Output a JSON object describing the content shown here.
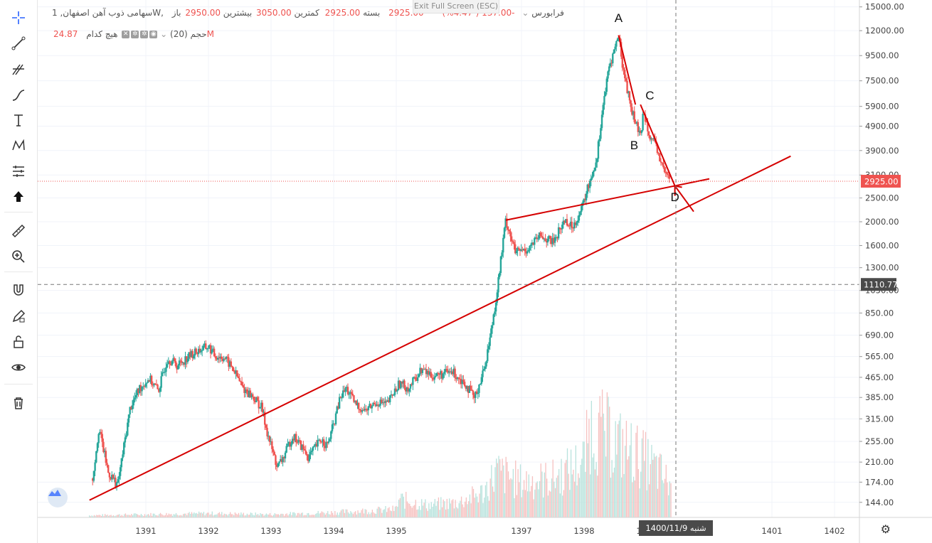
{
  "toolbar": {
    "items": [
      "crosshair-icon",
      "trendline-icon",
      "pitchfork-icon",
      "brush-icon",
      "text-icon",
      "pattern-icon",
      "forecast-icon",
      "arrow-up-icon",
      "ruler-icon",
      "zoom-in-icon",
      "magnet-icon",
      "lock-pencil-icon",
      "unlock-icon",
      "eye-icon",
      "trash-icon"
    ]
  },
  "header": {
    "symbol": "سهامی ذوب آهن اصفهان, 1W, فرابورس",
    "open_label": "باز",
    "open_value": "2950.00",
    "high_label": "بیشترین",
    "high_value": "3050.00",
    "low_label": "کمترین",
    "low_value": "2925.00",
    "close_label": "بسته",
    "close_value": "2925.00",
    "change": "-137.00 (-4.47%)",
    "volume_title": "حجم (20)",
    "volume_none": "هیچ کدام",
    "volume_value": "24.87M",
    "exit_fullscreen": "Exit Full Screen (ESC)"
  },
  "colors": {
    "up": "#26a69a",
    "down": "#ef5350",
    "line": "#d50000",
    "price_tag": "#ef5350",
    "crosshair_tag": "#4a4a4a"
  },
  "chart_data": {
    "type": "candlestick",
    "y_scale": "log",
    "ylim": [
      125,
      16000
    ],
    "y_ticks": [
      "15000.00",
      "12000.00",
      "9500.00",
      "7500.00",
      "5900.00",
      "4900.00",
      "3900.00",
      "3100.00",
      "2500.00",
      "2000.00",
      "1600.00",
      "1300.00",
      "1050.00",
      "850.00",
      "690.00",
      "565.00",
      "465.00",
      "385.00",
      "315.00",
      "255.00",
      "210.00",
      "174.00",
      "144.00"
    ],
    "x_ticks": [
      "1391",
      "1392",
      "1393",
      "1394",
      "1395",
      "1397",
      "1398",
      "1399",
      "1401",
      "1402"
    ],
    "last_price": "2925.00",
    "crosshair_price": "1110.77",
    "crosshair_date": "شنبه  1400/11/9",
    "price_path": [
      [
        1390.15,
        180
      ],
      [
        1390.25,
        290
      ],
      [
        1390.4,
        190
      ],
      [
        1390.55,
        170
      ],
      [
        1390.75,
        350
      ],
      [
        1390.9,
        420
      ],
      [
        1391.05,
        460
      ],
      [
        1391.2,
        410
      ],
      [
        1391.35,
        560
      ],
      [
        1391.5,
        520
      ],
      [
        1391.7,
        570
      ],
      [
        1391.85,
        600
      ],
      [
        1392.0,
        620
      ],
      [
        1392.1,
        570
      ],
      [
        1392.25,
        560
      ],
      [
        1392.4,
        500
      ],
      [
        1392.55,
        420
      ],
      [
        1392.7,
        390
      ],
      [
        1392.85,
        350
      ],
      [
        1392.95,
        270
      ],
      [
        1393.1,
        200
      ],
      [
        1393.2,
        220
      ],
      [
        1393.35,
        270
      ],
      [
        1393.45,
        250
      ],
      [
        1393.6,
        220
      ],
      [
        1393.8,
        260
      ],
      [
        1393.9,
        245
      ],
      [
        1394.0,
        300
      ],
      [
        1394.1,
        380
      ],
      [
        1394.2,
        420
      ],
      [
        1394.35,
        360
      ],
      [
        1394.5,
        340
      ],
      [
        1394.7,
        370
      ],
      [
        1394.85,
        360
      ],
      [
        1395.05,
        440
      ],
      [
        1395.2,
        420
      ],
      [
        1395.4,
        500
      ],
      [
        1395.6,
        470
      ],
      [
        1395.9,
        490
      ],
      [
        1396.1,
        440
      ],
      [
        1396.25,
        380
      ],
      [
        1396.4,
        500
      ],
      [
        1396.5,
        680
      ],
      [
        1396.6,
        1000
      ],
      [
        1396.75,
        2050
      ],
      [
        1396.9,
        1500
      ],
      [
        1397.1,
        1550
      ],
      [
        1397.3,
        1750
      ],
      [
        1397.5,
        1650
      ],
      [
        1397.7,
        2050
      ],
      [
        1397.8,
        1900
      ],
      [
        1397.95,
        2200
      ],
      [
        1398.05,
        2700
      ],
      [
        1398.2,
        3600
      ],
      [
        1398.3,
        5900
      ],
      [
        1398.4,
        8500
      ],
      [
        1398.55,
        11500
      ],
      [
        1398.62,
        8500
      ],
      [
        1398.75,
        5800
      ],
      [
        1398.9,
        4400
      ],
      [
        1398.95,
        5700
      ],
      [
        1399.05,
        4500
      ],
      [
        1399.15,
        4000
      ],
      [
        1399.28,
        3200
      ],
      [
        1399.38,
        2925
      ]
    ],
    "volume_profile": [
      [
        1390.1,
        0.02
      ],
      [
        1391,
        0.03
      ],
      [
        1392,
        0.04
      ],
      [
        1393,
        0.03
      ],
      [
        1394,
        0.05
      ],
      [
        1395,
        0.08
      ],
      [
        1395.05,
        0.18
      ],
      [
        1395.5,
        0.12
      ],
      [
        1396,
        0.15
      ],
      [
        1396.4,
        0.25
      ],
      [
        1396.6,
        0.45
      ],
      [
        1397,
        0.35
      ],
      [
        1397.5,
        0.38
      ],
      [
        1398,
        0.55
      ],
      [
        1398.1,
        0.9
      ],
      [
        1398.4,
        0.8
      ],
      [
        1398.6,
        0.7
      ],
      [
        1398.9,
        0.6
      ],
      [
        1399.2,
        0.45
      ],
      [
        1399.4,
        0.3
      ]
    ],
    "annotations": [
      {
        "label": "A",
        "x": 1398.55,
        "y": 13000
      },
      {
        "label": "B",
        "x": 1398.8,
        "y": 3950
      },
      {
        "label": "C",
        "x": 1399.05,
        "y": 6300
      },
      {
        "label": "D",
        "x": 1399.45,
        "y": 2430
      }
    ],
    "trendlines": [
      {
        "from": [
          1390.1,
          147
        ],
        "to": [
          1401.3,
          3700
        ]
      },
      {
        "from": [
          1396.75,
          2030
        ],
        "to": [
          1400.0,
          2990
        ]
      },
      {
        "from": [
          1398.55,
          11500
        ],
        "to": [
          1398.82,
          6000
        ]
      },
      {
        "from": [
          1398.9,
          6000
        ],
        "to": [
          1399.45,
          2800
        ]
      },
      {
        "from": [
          1399.45,
          2800
        ],
        "to": [
          1399.75,
          2200
        ]
      }
    ]
  }
}
